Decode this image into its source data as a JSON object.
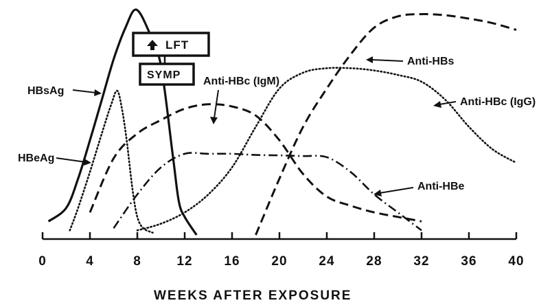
{
  "chart_data": {
    "type": "line",
    "xlabel": "WEEKS AFTER EXPOSURE",
    "xlim": [
      0,
      40
    ],
    "ylim": [
      0,
      100
    ],
    "xticks": [
      0,
      4,
      8,
      12,
      16,
      20,
      24,
      28,
      32,
      36,
      40
    ],
    "grid": false,
    "series": [
      {
        "name": "HBsAg",
        "style": "solid",
        "x": [
          0.5,
          2,
          3,
          4,
          5,
          6,
          7,
          7.9,
          9,
          10,
          11,
          11.5,
          12,
          13
        ],
        "y": [
          6,
          12,
          25,
          42,
          60,
          78,
          92,
          100,
          90,
          75,
          35,
          15,
          8,
          0
        ]
      },
      {
        "name": "HBeAg",
        "style": "dotted",
        "x": [
          2.3,
          3,
          4,
          5,
          5.8,
          6.3,
          6.7,
          7.1,
          7.6,
          8,
          8.5,
          9.3
        ],
        "y": [
          2,
          12,
          28,
          45,
          58,
          64,
          56,
          42,
          20,
          8,
          3,
          1
        ]
      },
      {
        "name": "Anti-HBc (IgM)",
        "style": "dashed",
        "x": [
          4,
          6,
          8,
          10,
          12,
          14,
          16,
          18,
          20,
          22,
          24,
          26,
          28,
          30,
          32
        ],
        "y": [
          10,
          34,
          45,
          51,
          56,
          58,
          57,
          53,
          42,
          27,
          17,
          13,
          10,
          8,
          6
        ]
      },
      {
        "name": "Anti-HBc (IgG)",
        "style": "dotted",
        "x": [
          8,
          10,
          12,
          14,
          16,
          18,
          20,
          22,
          24,
          26,
          28,
          30,
          32,
          34,
          36,
          38,
          40
        ],
        "y": [
          2,
          5,
          10,
          18,
          30,
          48,
          65,
          72,
          74,
          74,
          73,
          71,
          68,
          60,
          48,
          38,
          32
        ]
      },
      {
        "name": "Anti-HBe",
        "style": "dashdot",
        "x": [
          6,
          8,
          10,
          12,
          14,
          16,
          18,
          20,
          22,
          24,
          26,
          28,
          30,
          32
        ],
        "y": [
          3,
          18,
          30,
          36,
          36,
          36,
          35.5,
          35.3,
          35,
          34.5,
          28,
          18,
          10,
          2
        ]
      },
      {
        "name": "Anti-HBs",
        "style": "dashed",
        "x": [
          18,
          20,
          22,
          24,
          26,
          28,
          30,
          32,
          34,
          36,
          38,
          40
        ],
        "y": [
          0,
          25,
          48,
          65,
          80,
          92,
          97,
          98,
          97.5,
          96,
          94,
          91
        ]
      }
    ],
    "annotations": [
      {
        "text": "LFT",
        "symbol": "up-arrow"
      },
      {
        "text": "SYMP"
      }
    ]
  }
}
